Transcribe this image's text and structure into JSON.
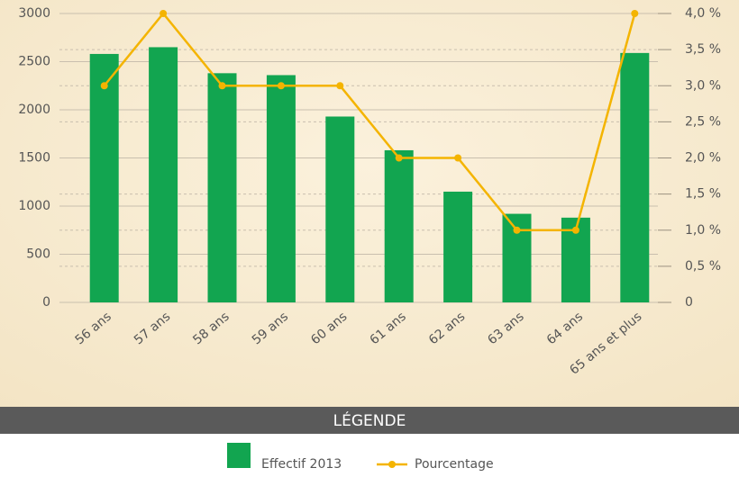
{
  "chart_data": {
    "type": "bar",
    "categories": [
      "56 ans",
      "57 ans",
      "58 ans",
      "59 ans",
      "60 ans",
      "61 ans",
      "62 ans",
      "63 ans",
      "64 ans",
      "65 ans et plus"
    ],
    "series": [
      {
        "name": "Effectif 2013",
        "color": "#12a550",
        "type": "bar",
        "values": [
          2580,
          2650,
          2380,
          2360,
          1930,
          1580,
          1150,
          920,
          880,
          2590
        ]
      },
      {
        "name": "Pourcentage",
        "color": "#f4b400",
        "type": "line",
        "axis": "y2",
        "values": [
          3,
          4,
          3,
          3,
          3,
          2,
          2,
          1,
          1,
          4
        ]
      }
    ],
    "ylim": [
      0,
      3000
    ],
    "yticks": [
      0,
      500,
      1000,
      1500,
      2000,
      2500,
      3000
    ],
    "y2lim": [
      0,
      4
    ],
    "y2ticks": [
      0,
      {
        "value": 0.5,
        "label": "0,5 %"
      },
      {
        "value": 1,
        "label": "1,0 %"
      },
      {
        "value": 1.5,
        "label": "1,5 %"
      },
      {
        "value": 2,
        "label": "2,0 %"
      },
      {
        "value": 2.5,
        "label": "2,5 %"
      },
      {
        "value": 3,
        "label": "3,0 %"
      },
      {
        "value": 3.5,
        "label": "3,5 %"
      },
      {
        "value": 4,
        "label": "4,0 %"
      }
    ],
    "grid": true,
    "legend_title": "LÉGENDE"
  }
}
